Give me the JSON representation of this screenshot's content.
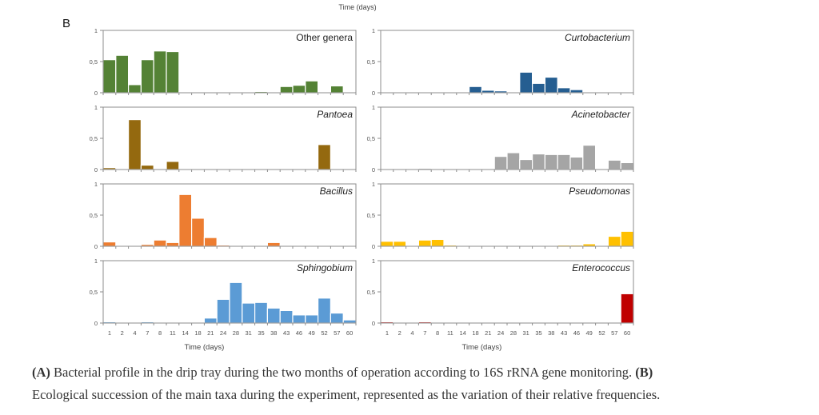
{
  "panel_label": "B",
  "top_axis_label": "Time (days)",
  "chart_data": {
    "type": "bar",
    "layout": "small multiples, 4 rows x 2 columns",
    "categories": [
      "1",
      "2",
      "4",
      "7",
      "8",
      "11",
      "14",
      "18",
      "21",
      "24",
      "28",
      "31",
      "35",
      "38",
      "43",
      "46",
      "49",
      "52",
      "57",
      "60"
    ],
    "xlabel": "Time (days)",
    "ylim": [
      0,
      1
    ],
    "yticks": [
      "0",
      "0,5",
      "1"
    ],
    "grid": false,
    "panels": [
      {
        "name": "Other genera",
        "italic": false,
        "color": "#548235",
        "column": "left",
        "values": [
          0.53,
          0.6,
          0.13,
          0.53,
          0.67,
          0.66,
          0.01,
          0.005,
          0,
          0,
          0,
          0.01,
          0.02,
          0.01,
          0.1,
          0.12,
          0.19,
          0,
          0.11,
          0
        ]
      },
      {
        "name": "Pantoea",
        "italic": true,
        "color": "#94690f",
        "column": "left",
        "values": [
          0.03,
          0.005,
          0.8,
          0.07,
          0,
          0.13,
          0,
          0,
          0,
          0,
          0,
          0,
          0,
          0,
          0,
          0,
          0,
          0.4,
          0,
          0
        ]
      },
      {
        "name": "Bacillus",
        "italic": true,
        "color": "#ed7d31",
        "column": "left",
        "values": [
          0.07,
          0.01,
          0,
          0.03,
          0.1,
          0.06,
          0.83,
          0.45,
          0.14,
          0.02,
          0,
          0,
          0.01,
          0.06,
          0.01,
          0.01,
          0.01,
          0,
          0,
          0
        ]
      },
      {
        "name": "Sphingobium",
        "italic": true,
        "color": "#5b9bd5",
        "column": "left",
        "values": [
          0.02,
          0,
          0,
          0.02,
          0,
          0,
          0,
          0,
          0.08,
          0.38,
          0.65,
          0.32,
          0.33,
          0.24,
          0.2,
          0.13,
          0.13,
          0.4,
          0.16,
          0.05
        ]
      },
      {
        "name": "Curtobacterium",
        "italic": true,
        "color": "#255e91",
        "column": "right",
        "values": [
          0,
          0,
          0,
          0,
          0,
          0.01,
          0,
          0.1,
          0.04,
          0.03,
          0.005,
          0.33,
          0.15,
          0.25,
          0.08,
          0.05,
          0.005,
          0,
          0,
          0
        ]
      },
      {
        "name": "Acinetobacter",
        "italic": true,
        "color": "#a5a5a5",
        "column": "right",
        "values": [
          0.005,
          0.01,
          0.005,
          0.02,
          0,
          0,
          0,
          0,
          0.005,
          0.21,
          0.27,
          0.16,
          0.25,
          0.24,
          0.24,
          0.2,
          0.39,
          0,
          0.15,
          0.11
        ]
      },
      {
        "name": "Pseudomonas",
        "italic": true,
        "color": "#ffc000",
        "column": "right",
        "values": [
          0.08,
          0.08,
          0.01,
          0.1,
          0.11,
          0.02,
          0,
          0,
          0,
          0,
          0,
          0.005,
          0,
          0.01,
          0.02,
          0.02,
          0.04,
          0,
          0.16,
          0.24
        ]
      },
      {
        "name": "Enterococcus",
        "italic": true,
        "color": "#c00000",
        "column": "right",
        "values": [
          0.02,
          0.01,
          0.005,
          0.02,
          0,
          0,
          0.003,
          0.003,
          0.003,
          0.003,
          0.003,
          0.015,
          0.003,
          0.003,
          0.003,
          0.003,
          0.003,
          0,
          0.005,
          0.47
        ]
      }
    ]
  },
  "caption": {
    "line1_label": "(A)",
    "line1_text": " Bacterial profile in the drip tray during the two months of operation according to 16S rRNA gene monitoring. ",
    "line1_label_b": "(B)",
    "line2_text": "Ecological succession of the main taxa during the experiment, represented as the variation of their relative frequencies."
  }
}
